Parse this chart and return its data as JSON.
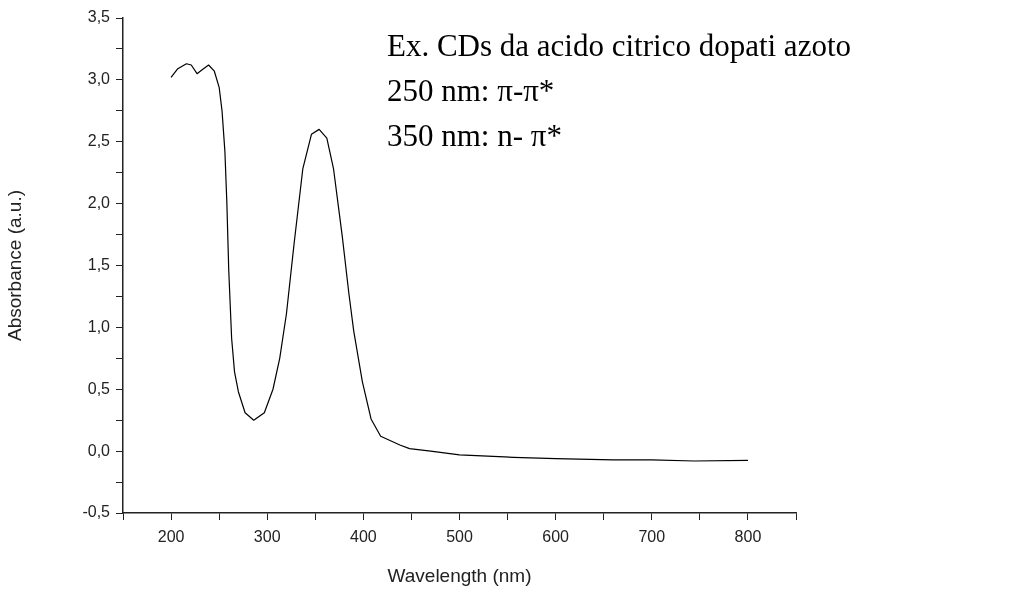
{
  "chart_data": {
    "type": "line",
    "xlabel": "Wavelength (nm)",
    "ylabel": "Absorbance (a.u.)",
    "annotations": [
      "Ex. CDs da acido citrico dopati azoto",
      "250 nm: π-π*",
      "350 nm: n- π*"
    ],
    "xlim": [
      150,
      850
    ],
    "xticks": [
      {
        "value": 150,
        "label": null
      },
      200,
      {
        "value": 250,
        "label": null
      },
      300,
      {
        "value": 350,
        "label": null
      },
      400,
      {
        "value": 450,
        "label": null
      },
      500,
      {
        "value": 550,
        "label": null
      },
      600,
      {
        "value": 650,
        "label": null
      },
      700,
      {
        "value": 750,
        "label": null
      },
      800,
      {
        "value": 850,
        "label": null
      }
    ],
    "ylim": [
      -0.5,
      3.5
    ],
    "yticks": [
      {
        "value": -0.5,
        "label": "-0,5"
      },
      {
        "value": -0.25,
        "label": null
      },
      {
        "value": 0,
        "label": "0,0"
      },
      {
        "value": 0.25,
        "label": null
      },
      {
        "value": 0.5,
        "label": "0,5"
      },
      {
        "value": 0.75,
        "label": null
      },
      {
        "value": 1,
        "label": "1,0"
      },
      {
        "value": 1.25,
        "label": null
      },
      {
        "value": 1.5,
        "label": "1,5"
      },
      {
        "value": 1.75,
        "label": null
      },
      {
        "value": 2,
        "label": "2,0"
      },
      {
        "value": 2.25,
        "label": null
      },
      {
        "value": 2.5,
        "label": "2,5"
      },
      {
        "value": 2.75,
        "label": null
      },
      {
        "value": 3,
        "label": "3,0"
      },
      {
        "value": 3.25,
        "label": null
      },
      {
        "value": 3.5,
        "label": "3,5"
      }
    ],
    "grid": false,
    "legend": false,
    "marker": "none",
    "line_style": "solid",
    "series": [
      {
        "color": "#000000",
        "x": [
          200,
          207,
          216,
          221,
          227,
          232,
          239,
          245,
          250,
          253,
          256,
          258,
          260,
          263,
          266,
          270,
          277,
          286,
          297,
          306,
          313,
          320,
          328,
          337,
          346,
          354,
          362,
          369,
          378,
          385,
          390,
          399,
          408,
          418,
          438,
          448,
          470,
          500,
          556,
          600,
          660,
          700,
          744,
          800
        ],
        "values": [
          3.02,
          3.09,
          3.13,
          3.12,
          3.05,
          3.08,
          3.12,
          3.07,
          2.94,
          2.75,
          2.42,
          2.01,
          1.46,
          0.91,
          0.64,
          0.48,
          0.31,
          0.25,
          0.31,
          0.5,
          0.75,
          1.11,
          1.68,
          2.28,
          2.56,
          2.6,
          2.53,
          2.28,
          1.74,
          1.27,
          0.97,
          0.56,
          0.26,
          0.12,
          0.05,
          0.02,
          0.0,
          -0.03,
          -0.05,
          -0.06,
          -0.07,
          -0.07,
          -0.08,
          -0.075
        ]
      }
    ]
  }
}
